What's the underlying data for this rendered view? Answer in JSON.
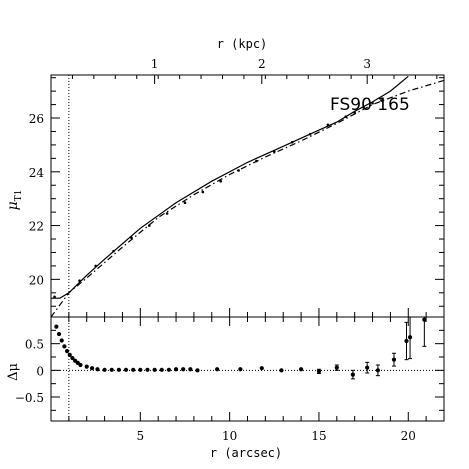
{
  "chart_data": [
    {
      "type": "line",
      "title": "",
      "annotation": "FS90  165",
      "xlabel": "r (arcsec)",
      "ylabel": "μT1",
      "ylabel_main": "μ",
      "ylabel_sub": "T1",
      "top_xlabel": "r (kpc)",
      "top_ticks": [
        {
          "label": "1",
          "arcsec": 5.8
        },
        {
          "label": "2",
          "arcsec": 11.8
        },
        {
          "label": "3",
          "arcsec": 17.7
        }
      ],
      "xlim": [
        0,
        22
      ],
      "ylim": [
        27.6,
        18.6
      ],
      "y_ticks": [
        20,
        22,
        24,
        26
      ],
      "y_tick_labels": [
        "20",
        "22",
        "24",
        "26"
      ],
      "y_inverted": true,
      "vline_x": 1.0,
      "series": [
        {
          "style": "dots",
          "x": [
            0.2,
            1.6,
            2.5,
            3.5,
            4.5,
            5.5,
            6.5,
            7.5,
            8.5,
            9.5,
            10.5,
            11.5,
            12.5,
            13.5,
            14.5,
            15.5,
            16.5,
            17.0,
            17.5,
            18.0,
            18.5
          ],
          "y": [
            19.35,
            19.95,
            20.5,
            21.05,
            21.55,
            22.0,
            22.45,
            22.85,
            23.25,
            23.65,
            24.05,
            24.4,
            24.75,
            25.1,
            25.4,
            25.75,
            26.05,
            26.2,
            26.4,
            26.55,
            26.65
          ]
        },
        {
          "style": "solid",
          "x": [
            0.0,
            0.5,
            1.0,
            2.0,
            3.0,
            5.0,
            7.0,
            9.0,
            11.0,
            13.0,
            15.0,
            16.0,
            17.0,
            18.0,
            19.0,
            20.0
          ],
          "y": [
            19.3,
            19.3,
            19.5,
            20.15,
            20.75,
            21.9,
            22.85,
            23.65,
            24.35,
            24.95,
            25.55,
            25.85,
            26.25,
            26.6,
            27.0,
            27.55
          ]
        },
        {
          "style": "dashdot",
          "x": [
            0.0,
            1.0,
            2.0,
            4.0,
            6.0,
            8.0,
            10.0,
            12.0,
            14.0,
            16.0,
            18.0,
            20.0,
            22.0
          ],
          "y": [
            18.6,
            19.5,
            20.05,
            21.2,
            22.3,
            23.15,
            23.9,
            24.55,
            25.15,
            25.8,
            26.5,
            27.0,
            27.4
          ]
        }
      ]
    },
    {
      "type": "scatter",
      "title": "",
      "xlabel": "r (arcsec)",
      "ylabel": "Δμ",
      "xlim": [
        0,
        22
      ],
      "ylim": [
        -0.95,
        1.0
      ],
      "x_ticks": [
        5,
        10,
        15,
        20
      ],
      "x_tick_labels": [
        "5",
        "10",
        "15",
        "20"
      ],
      "y_ticks": [
        0.5,
        0,
        -0.5
      ],
      "y_tick_labels": [
        "0.5",
        "0",
        "−0.5"
      ],
      "hline_y": 0,
      "vline_x": 1.0,
      "points": [
        {
          "x": 0.3,
          "y": 0.82
        },
        {
          "x": 0.45,
          "y": 0.68
        },
        {
          "x": 0.6,
          "y": 0.56
        },
        {
          "x": 0.75,
          "y": 0.45
        },
        {
          "x": 0.9,
          "y": 0.36
        },
        {
          "x": 1.05,
          "y": 0.29
        },
        {
          "x": 1.2,
          "y": 0.23
        },
        {
          "x": 1.35,
          "y": 0.18
        },
        {
          "x": 1.5,
          "y": 0.14
        },
        {
          "x": 1.65,
          "y": 0.1
        },
        {
          "x": 2.0,
          "y": 0.07
        },
        {
          "x": 2.3,
          "y": 0.04
        },
        {
          "x": 2.6,
          "y": 0.02
        },
        {
          "x": 3.0,
          "y": 0.01
        },
        {
          "x": 3.4,
          "y": 0.01
        },
        {
          "x": 3.8,
          "y": 0.01
        },
        {
          "x": 4.2,
          "y": 0.01
        },
        {
          "x": 4.6,
          "y": 0.01
        },
        {
          "x": 5.0,
          "y": 0.01
        },
        {
          "x": 5.4,
          "y": 0.01
        },
        {
          "x": 5.8,
          "y": 0.01
        },
        {
          "x": 6.2,
          "y": 0.01
        },
        {
          "x": 6.6,
          "y": 0.01
        },
        {
          "x": 7.0,
          "y": 0.02
        },
        {
          "x": 7.4,
          "y": 0.02
        },
        {
          "x": 7.8,
          "y": 0.02
        },
        {
          "x": 8.2,
          "y": 0.0
        },
        {
          "x": 9.3,
          "y": 0.02
        },
        {
          "x": 10.6,
          "y": 0.02
        },
        {
          "x": 11.8,
          "y": 0.04
        },
        {
          "x": 12.9,
          "y": 0.0
        },
        {
          "x": 14.0,
          "y": 0.02
        },
        {
          "x": 15.0,
          "y": -0.02,
          "err": 0.04
        },
        {
          "x": 16.0,
          "y": 0.05,
          "err": 0.05
        },
        {
          "x": 16.9,
          "y": -0.08,
          "err": 0.08
        },
        {
          "x": 17.7,
          "y": 0.05,
          "err": 0.1
        },
        {
          "x": 18.3,
          "y": 0.0,
          "err": 0.1
        },
        {
          "x": 19.2,
          "y": 0.2,
          "err": 0.12
        },
        {
          "x": 19.9,
          "y": 0.55,
          "err": 0.35
        },
        {
          "x": 20.1,
          "y": 0.62,
          "err": 0.4
        },
        {
          "x": 20.9,
          "y": 0.95,
          "err": 0.5
        }
      ]
    }
  ]
}
